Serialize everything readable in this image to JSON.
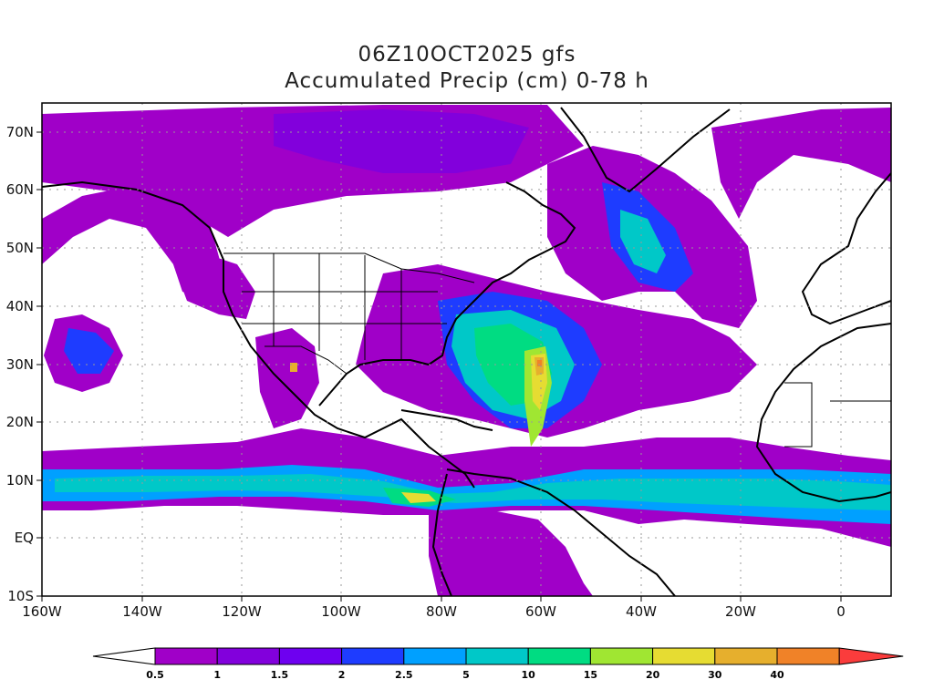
{
  "title": {
    "line1": "06Z10OCT2025 gfs",
    "line2": "Accumulated Precip (cm) 0-78 h"
  },
  "axes": {
    "lat_labels": [
      "70N",
      "60N",
      "50N",
      "40N",
      "30N",
      "20N",
      "10N",
      "EQ",
      "10S"
    ],
    "lon_labels": [
      "160W",
      "140W",
      "120W",
      "100W",
      "80W",
      "60W",
      "40W",
      "20W",
      "0"
    ],
    "lat_range": [
      -10,
      75
    ],
    "lon_range": [
      -160,
      10
    ]
  },
  "colorbar": {
    "levels": [
      "0.5",
      "1",
      "1.5",
      "2",
      "2.5",
      "5",
      "10",
      "15",
      "20",
      "30",
      "40"
    ],
    "colors": [
      "#a000c8",
      "#8200dc",
      "#6e00f0",
      "#1e3cff",
      "#00a0ff",
      "#00c8c8",
      "#00dc82",
      "#a0e632",
      "#e6dc32",
      "#e6af2d",
      "#f08228",
      "#fa3c3c"
    ]
  },
  "map": {
    "background": "#ffffff",
    "grid": "dotted",
    "features": [
      "coastlines",
      "country borders",
      "US state borders"
    ]
  }
}
